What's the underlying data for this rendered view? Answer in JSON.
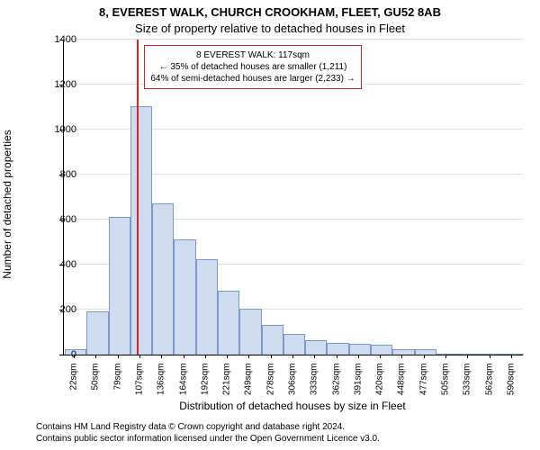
{
  "title_main": "8, EVEREST WALK, CHURCH CROOKHAM, FLEET, GU52 8AB",
  "title_sub": "Size of property relative to detached houses in Fleet",
  "y_label": "Number of detached properties",
  "x_label": "Distribution of detached houses by size in Fleet",
  "chart": {
    "type": "bar",
    "ylim": [
      0,
      1400
    ],
    "yticks": [
      0,
      200,
      400,
      600,
      800,
      1000,
      1200,
      1400
    ],
    "categories": [
      "22sqm",
      "50sqm",
      "79sqm",
      "107sqm",
      "136sqm",
      "164sqm",
      "192sqm",
      "221sqm",
      "249sqm",
      "278sqm",
      "306sqm",
      "333sqm",
      "362sqm",
      "391sqm",
      "420sqm",
      "448sqm",
      "477sqm",
      "505sqm",
      "533sqm",
      "562sqm",
      "590sqm"
    ],
    "values": [
      20,
      190,
      610,
      1100,
      670,
      510,
      420,
      280,
      200,
      130,
      90,
      60,
      50,
      45,
      40,
      20,
      20,
      0,
      0,
      0,
      0
    ],
    "bar_fill": "#cfdcf0",
    "bar_stroke": "#7a98c9",
    "background_color": "#ffffff",
    "grid_color": "#e0e0e0",
    "marker": {
      "index_after": 3,
      "fraction": 0.35,
      "color": "#d62728"
    },
    "annotation": {
      "lines": [
        "8 EVEREST WALK: 117sqm",
        "← 35% of detached houses are smaller (1,211)",
        "64% of semi-detached houses are larger (2,233) →"
      ],
      "border_color": "#d62728"
    }
  },
  "footer_line1": "Contains HM Land Registry data © Crown copyright and database right 2024.",
  "footer_line2": "Contains public sector information licensed under the Open Government Licence v3.0."
}
